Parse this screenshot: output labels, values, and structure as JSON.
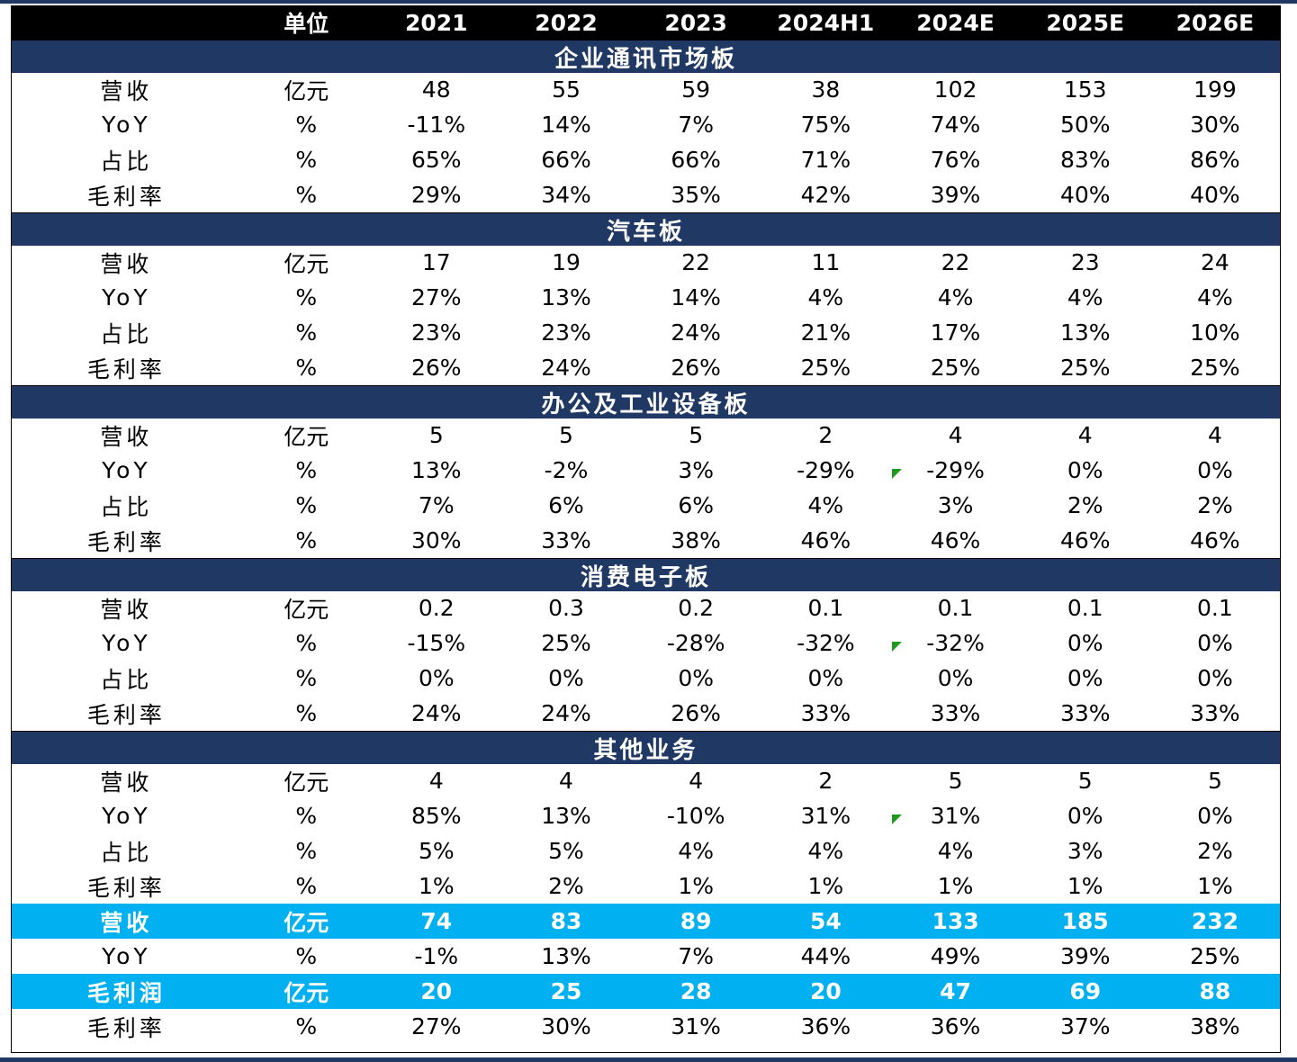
{
  "header": [
    "",
    "单位",
    "2021",
    "2022",
    "2023",
    "2024H1",
    "2024E",
    "2025E",
    "2026E"
  ],
  "sections": [
    {
      "title": "企业通讯市场板",
      "rows": [
        [
          "营收",
          "亿元",
          "48",
          "55",
          "59",
          "38",
          "102",
          "153",
          "199"
        ],
        [
          "YoY",
          "%",
          "-11%",
          "14%",
          "7%",
          "75%",
          "74%",
          "50%",
          "30%"
        ],
        [
          "占比",
          "%",
          "65%",
          "66%",
          "66%",
          "71%",
          "76%",
          "83%",
          "86%"
        ],
        [
          "毛利率",
          "%",
          "29%",
          "34%",
          "35%",
          "42%",
          "39%",
          "40%",
          "40%"
        ]
      ]
    },
    {
      "title": "汽车板",
      "rows": [
        [
          "营收",
          "亿元",
          "17",
          "19",
          "22",
          "11",
          "22",
          "23",
          "24"
        ],
        [
          "YoY",
          "%",
          "27%",
          "13%",
          "14%",
          "4%",
          "4%",
          "4%",
          "4%"
        ],
        [
          "占比",
          "%",
          "23%",
          "23%",
          "24%",
          "21%",
          "17%",
          "13%",
          "10%"
        ],
        [
          "毛利率",
          "%",
          "26%",
          "24%",
          "26%",
          "25%",
          "25%",
          "25%",
          "25%"
        ]
      ]
    },
    {
      "title": "办公及工业设备板",
      "rows": [
        [
          "营收",
          "亿元",
          "5",
          "5",
          "5",
          "2",
          "4",
          "4",
          "4"
        ],
        [
          "YoY",
          "%",
          "13%",
          "-2%",
          "3%",
          "-29%",
          "-29%",
          "0%",
          "0%"
        ],
        [
          "占比",
          "%",
          "7%",
          "6%",
          "6%",
          "4%",
          "3%",
          "2%",
          "2%"
        ],
        [
          "毛利率",
          "%",
          "30%",
          "33%",
          "38%",
          "46%",
          "46%",
          "46%",
          "46%"
        ]
      ]
    },
    {
      "title": "消费电子板",
      "rows": [
        [
          "营收",
          "亿元",
          "0.2",
          "0.3",
          "0.2",
          "0.1",
          "0.1",
          "0.1",
          "0.1"
        ],
        [
          "YoY",
          "%",
          "-15%",
          "25%",
          "-28%",
          "-32%",
          "-32%",
          "0%",
          "0%"
        ],
        [
          "占比",
          "%",
          "0%",
          "0%",
          "0%",
          "0%",
          "0%",
          "0%",
          "0%"
        ],
        [
          "毛利率",
          "%",
          "24%",
          "24%",
          "26%",
          "33%",
          "33%",
          "33%",
          "33%"
        ]
      ]
    },
    {
      "title": "其他业务",
      "rows": [
        [
          "营收",
          "亿元",
          "4",
          "4",
          "4",
          "2",
          "5",
          "5",
          "5"
        ],
        [
          "YoY",
          "%",
          "85%",
          "13%",
          "-10%",
          "31%",
          "31%",
          "0%",
          "0%"
        ],
        [
          "占比",
          "%",
          "5%",
          "5%",
          "4%",
          "4%",
          "4%",
          "3%",
          "2%"
        ],
        [
          "毛利率",
          "%",
          "1%",
          "2%",
          "1%",
          "1%",
          "1%",
          "1%",
          "1%"
        ]
      ]
    }
  ],
  "totals": [
    [
      "营收",
      "亿元",
      "74",
      "83",
      "89",
      "54",
      "133",
      "185",
      "232"
    ],
    [
      "YoY",
      "%",
      "-1%",
      "13%",
      "7%",
      "44%",
      "49%",
      "39%",
      "25%"
    ],
    [
      "毛利润",
      "亿元",
      "20",
      "25",
      "28",
      "20",
      "47",
      "69",
      "88"
    ],
    [
      "毛利率",
      "%",
      "27%",
      "30%",
      "31%",
      "36%",
      "36%",
      "37%",
      "38%"
    ]
  ],
  "colors": {
    "header_bg": "#000000",
    "section_bg": "#1f3864",
    "total_bg": "#00b0f0",
    "marker": "#1f9a1f"
  }
}
